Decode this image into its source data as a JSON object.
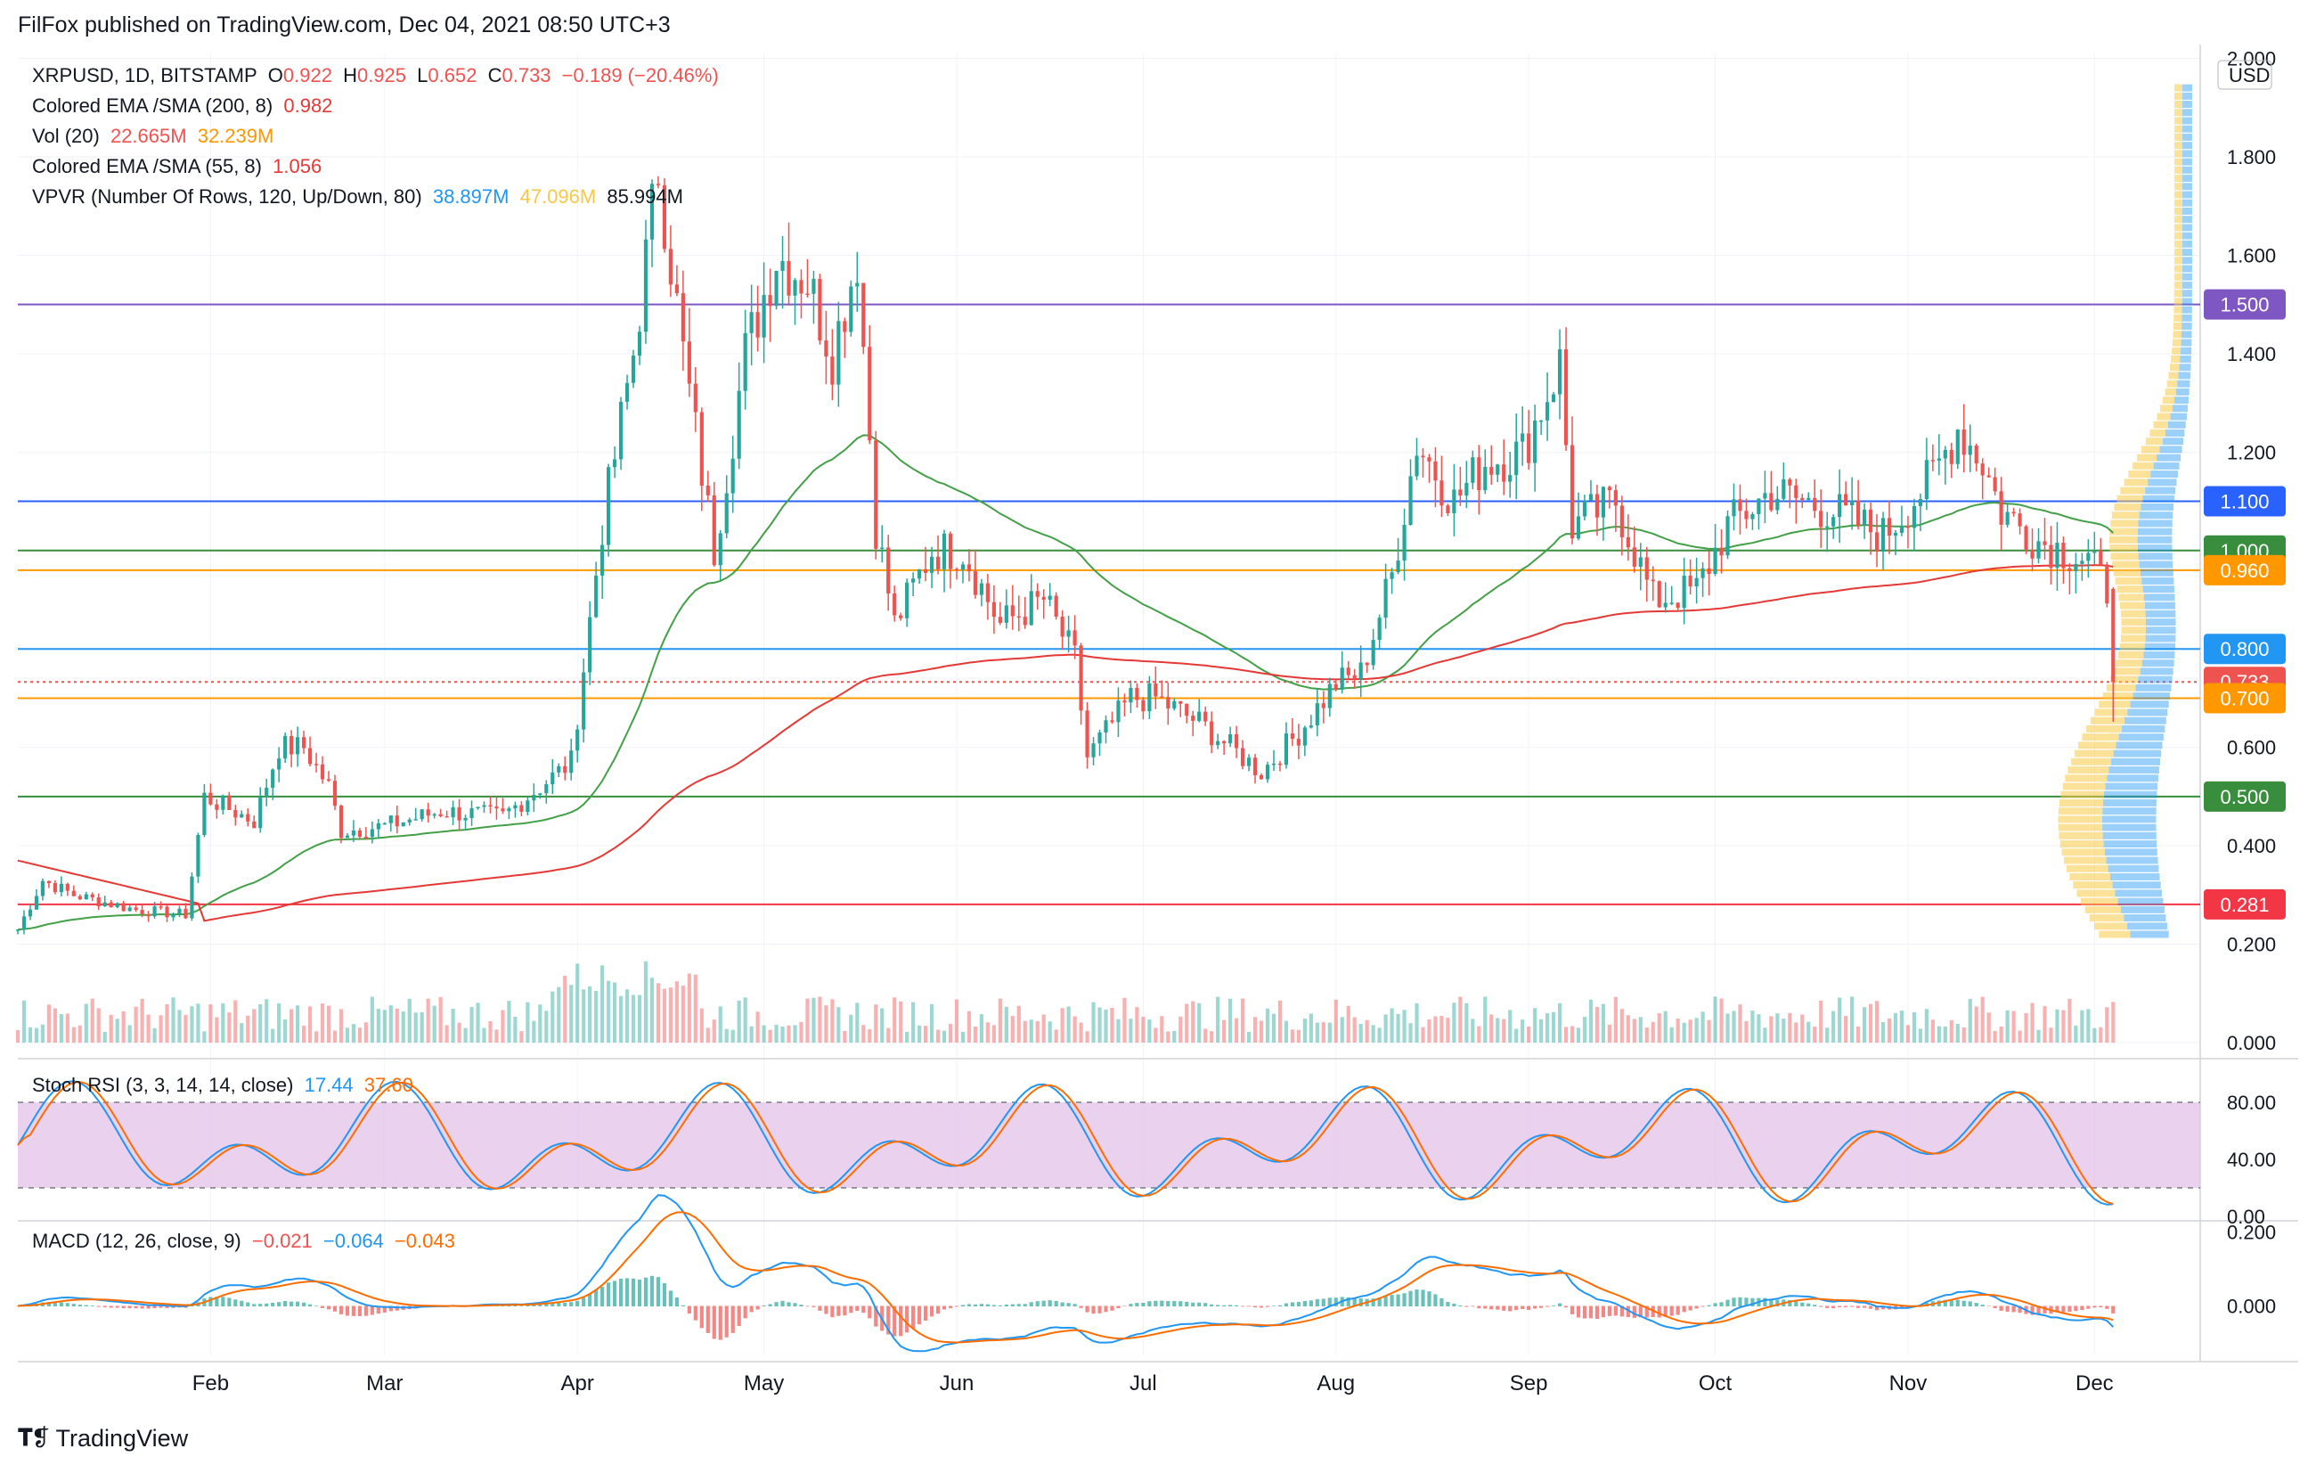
{
  "header": {
    "publisher": "FilFox published on TradingView.com, Dec 04, 2021 08:50 UTC+3"
  },
  "legend": {
    "symbol": "XRPUSD, 1D, BITSTAMP",
    "o_label": "O",
    "o_val": "0.922",
    "h_label": "H",
    "h_val": "0.925",
    "l_label": "L",
    "l_val": "0.652",
    "c_label": "C",
    "c_val": "0.733",
    "change": "−0.189 (−20.46%)",
    "ema200_name": "Colored EMA /SMA (200, 8)",
    "ema200_val": "0.982",
    "vol_name": "Vol (20)",
    "vol_val1": "22.665M",
    "vol_val2": "32.239M",
    "ema55_name": "Colored EMA /SMA (55, 8)",
    "ema55_val": "1.056",
    "vpvr_name": "VPVR (Number Of Rows, 120, Up/Down, 80)",
    "vpvr_up": "38.897M",
    "vpvr_down": "47.096M",
    "vpvr_total": "85.994M",
    "stoch_name": "Stoch RSI (3, 3, 14, 14, close)",
    "stoch_k": "17.44",
    "stoch_d": "37.60",
    "macd_name": "MACD (12, 26, close, 9)",
    "macd_hist": "−0.021",
    "macd_line": "−0.064",
    "macd_signal": "−0.043"
  },
  "price_axis": {
    "currency": "USD",
    "ticks": [
      "2.000",
      "1.800",
      "1.600",
      "1.400",
      "1.200",
      "0.600",
      "0.400",
      "0.200",
      "0.000"
    ]
  },
  "levels": [
    {
      "label": "1.500",
      "value": 1.5,
      "color": "#7e57c2"
    },
    {
      "label": "1.100",
      "value": 1.1,
      "color": "#2962ff"
    },
    {
      "label": "1.000",
      "value": 1.0,
      "color": "#388e3c"
    },
    {
      "label": "0.960",
      "value": 0.96,
      "color": "#ff9800"
    },
    {
      "label": "0.800",
      "value": 0.8,
      "color": "#2196f3"
    },
    {
      "label": "0.733",
      "value": 0.733,
      "color": "#ef5350"
    },
    {
      "label": "0.700",
      "value": 0.7,
      "color": "#ff9800"
    },
    {
      "label": "0.500",
      "value": 0.5,
      "color": "#388e3c"
    },
    {
      "label": "0.281",
      "value": 0.281,
      "color": "#f23645"
    }
  ],
  "stoch_axis": {
    "ticks": [
      "80.00",
      "40.00",
      "0.00"
    ]
  },
  "macd_axis": {
    "ticks": [
      "0.200",
      "0.000"
    ]
  },
  "x_axis": {
    "months": [
      "Feb",
      "Mar",
      "Apr",
      "May",
      "Jun",
      "Jul",
      "Aug",
      "Sep",
      "Oct",
      "Nov",
      "Dec"
    ]
  },
  "footer": {
    "brand": "TradingView"
  },
  "colors": {
    "up": "#26a69a",
    "down": "#ef5350",
    "ema55": "#43a047",
    "ema200": "#e53935",
    "stoch_k": "#2196f3",
    "stoch_d": "#ff6d00",
    "stoch_band": "#e1bee7"
  },
  "chart_data": {
    "type": "candlestick",
    "symbol": "XRPUSD",
    "timeframe": "1D",
    "y_range": [
      0.0,
      2.0
    ],
    "x_range": [
      "2021-01-01",
      "2021-12-04"
    ],
    "price_path": [
      [
        "2021-01-01",
        0.23
      ],
      [
        "2021-01-05",
        0.33
      ],
      [
        "2021-01-10",
        0.3
      ],
      [
        "2021-01-20",
        0.27
      ],
      [
        "2021-01-28",
        0.26
      ],
      [
        "2021-01-31",
        0.5
      ],
      [
        "2021-02-08",
        0.45
      ],
      [
        "2021-02-12",
        0.6
      ],
      [
        "2021-02-16",
        0.6
      ],
      [
        "2021-02-20",
        0.52
      ],
      [
        "2021-02-22",
        0.43
      ],
      [
        "2021-03-01",
        0.44
      ],
      [
        "2021-03-10",
        0.47
      ],
      [
        "2021-03-20",
        0.46
      ],
      [
        "2021-03-31",
        0.57
      ],
      [
        "2021-04-05",
        1.05
      ],
      [
        "2021-04-10",
        1.4
      ],
      [
        "2021-04-14",
        1.78
      ],
      [
        "2021-04-18",
        1.4
      ],
      [
        "2021-04-23",
        1.0
      ],
      [
        "2021-04-28",
        1.4
      ],
      [
        "2021-05-03",
        1.6
      ],
      [
        "2021-05-08",
        1.55
      ],
      [
        "2021-05-12",
        1.4
      ],
      [
        "2021-05-16",
        1.6
      ],
      [
        "2021-05-19",
        1.05
      ],
      [
        "2021-05-22",
        0.85
      ],
      [
        "2021-05-28",
        1.0
      ],
      [
        "2021-06-02",
        1.0
      ],
      [
        "2021-06-08",
        0.85
      ],
      [
        "2021-06-15",
        0.9
      ],
      [
        "2021-06-20",
        0.78
      ],
      [
        "2021-06-22",
        0.58
      ],
      [
        "2021-06-29",
        0.7
      ],
      [
        "2021-07-03",
        0.7
      ],
      [
        "2021-07-10",
        0.65
      ],
      [
        "2021-07-20",
        0.55
      ],
      [
        "2021-07-26",
        0.63
      ],
      [
        "2021-08-01",
        0.73
      ],
      [
        "2021-08-05",
        0.75
      ],
      [
        "2021-08-10",
        0.95
      ],
      [
        "2021-08-14",
        1.22
      ],
      [
        "2021-08-20",
        1.1
      ],
      [
        "2021-08-25",
        1.18
      ],
      [
        "2021-08-31",
        1.2
      ],
      [
        "2021-09-06",
        1.38
      ],
      [
        "2021-09-08",
        1.05
      ],
      [
        "2021-09-15",
        1.1
      ],
      [
        "2021-09-21",
        0.9
      ],
      [
        "2021-09-28",
        0.92
      ],
      [
        "2021-10-03",
        1.05
      ],
      [
        "2021-10-10",
        1.12
      ],
      [
        "2021-10-20",
        1.08
      ],
      [
        "2021-10-28",
        1.03
      ],
      [
        "2021-11-05",
        1.15
      ],
      [
        "2021-11-09",
        1.25
      ],
      [
        "2021-11-13",
        1.18
      ],
      [
        "2021-11-16",
        1.08
      ],
      [
        "2021-11-22",
        1.02
      ],
      [
        "2021-11-30",
        0.98
      ],
      [
        "2021-12-03",
        0.92
      ],
      [
        "2021-12-04",
        0.733
      ]
    ],
    "series": [
      {
        "name": "Colored EMA /SMA (55, 8)",
        "last": 1.056
      },
      {
        "name": "Colored EMA /SMA (200, 8)",
        "last": 0.982
      }
    ]
  }
}
